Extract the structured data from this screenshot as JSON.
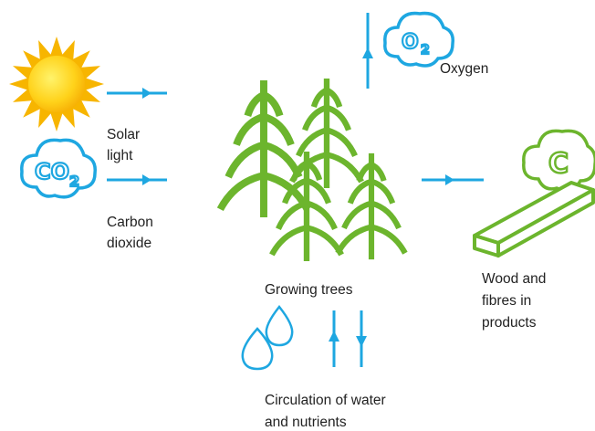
{
  "labels": {
    "solar_light": [
      "Solar",
      "light"
    ],
    "carbon_dioxide": [
      "Carbon",
      "dioxide"
    ],
    "oxygen": "Oxygen",
    "growing_trees": "Growing trees",
    "wood_products": [
      "Wood and",
      "fibres in",
      "products"
    ],
    "circulation": [
      "Circulation of water",
      "and nutrients"
    ]
  },
  "icons": {
    "co2": [
      "CO",
      "2"
    ],
    "o2": [
      "O",
      "2"
    ],
    "carbon": "C"
  }
}
